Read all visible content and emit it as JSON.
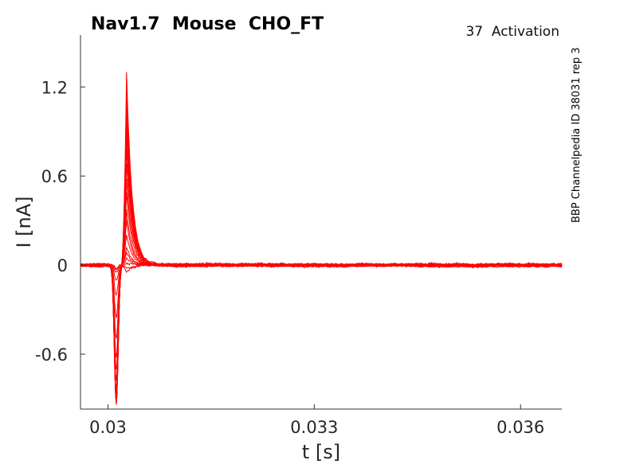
{
  "title": "Nav1.7  Mouse  CHO_FT",
  "protocol_label": "37  Activation",
  "side_label": "BBP Channelpedia ID 38031 rep 3",
  "chart_data": {
    "type": "line",
    "xlabel": "t [s]",
    "ylabel": "I [nA]",
    "xlim": [
      0.0296,
      0.0366
    ],
    "ylim": [
      -0.97,
      1.55
    ],
    "xticks": [
      {
        "value": 0.03,
        "label": "0.03"
      },
      {
        "value": 0.033,
        "label": "0.033"
      },
      {
        "value": 0.036,
        "label": "0.036"
      }
    ],
    "yticks": [
      {
        "value": 1.2,
        "label": "1.2"
      },
      {
        "value": 0.6,
        "label": "0.6"
      },
      {
        "value": 0,
        "label": "0"
      },
      {
        "value": -0.6,
        "label": "-0.6"
      }
    ],
    "grid": false,
    "line_color": "#ff0000",
    "sweeps": [
      {
        "inward": -0.02,
        "peak": 0.02
      },
      {
        "inward": -0.03,
        "peak": -0.05
      },
      {
        "inward": -0.05,
        "peak": -0.02
      },
      {
        "inward": -0.1,
        "peak": 0.04
      },
      {
        "inward": -0.2,
        "peak": 0.08
      },
      {
        "inward": -0.35,
        "peak": 0.12
      },
      {
        "inward": -0.5,
        "peak": 0.2
      },
      {
        "inward": -0.62,
        "peak": 0.3
      },
      {
        "inward": -0.7,
        "peak": 0.38
      },
      {
        "inward": -0.78,
        "peak": 0.48
      },
      {
        "inward": -0.84,
        "peak": 0.58
      },
      {
        "inward": -0.88,
        "peak": 0.68
      },
      {
        "inward": -0.9,
        "peak": 0.78
      },
      {
        "inward": -0.92,
        "peak": 0.88
      },
      {
        "inward": -0.93,
        "peak": 0.95
      },
      {
        "inward": -0.94,
        "peak": 1.05
      },
      {
        "inward": -0.94,
        "peak": 1.12
      },
      {
        "inward": -0.93,
        "peak": 1.2
      },
      {
        "inward": -0.9,
        "peak": 1.3
      }
    ],
    "timing": {
      "trough_t": 0.03012,
      "peak_t": 0.03027,
      "decay_s": 8e-05,
      "noise": 0.01
    }
  }
}
